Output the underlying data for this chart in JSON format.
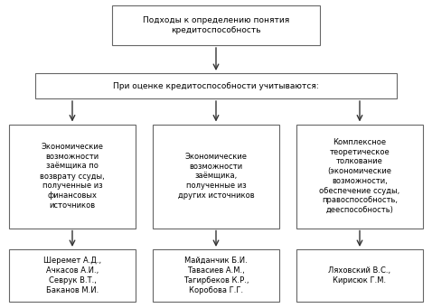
{
  "title_box": "Подходы к определению понятия\nкредитоспособность",
  "level2_box": "При оценке кредитоспособности учитываются:",
  "level3_boxes": [
    "Экономические\nвозможности\nзаёмщика по\nвозврату ссуды,\nполученные из\nфинансовых\nисточников",
    "Экономические\nвозможности\nзаёмщика,\nполученные из\nдругих источников",
    "Комплексное\nтеоретическое\nтолкование\n(экономические\nвозможности,\nобеспечение ссуды,\nправоспособность,\nдееспособность)"
  ],
  "level4_boxes": [
    "Шеремет А.Д.,\nАчкасов А.И.,\nСеврук В.Т.,\nБаканов М.И.",
    "Майданчик Б.И.\nТавасиев А.М.,\nТагирбеков К.Р.,\nКоробова Г.Г.",
    "Ляховский В.С.,\nКирисюк Г.М."
  ],
  "bg_color": "#ffffff",
  "box_facecolor": "#ffffff",
  "box_edgecolor": "#666666",
  "arrow_color": "#333333",
  "font_size": 6.5,
  "font_family": "DejaVu Sans"
}
